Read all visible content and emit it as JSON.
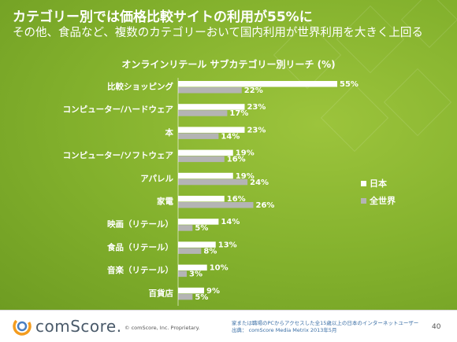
{
  "slide": {
    "headline": "カテゴリー別では価格比較サイトの利用が55%に",
    "subline": "その他、食品など、複数のカテゴリーおいて国内利用が世界利用を大きく上回る",
    "page_number": "40"
  },
  "chart_data": {
    "type": "bar",
    "orientation": "horizontal",
    "title": "オンラインリテール サブカテゴリー別リーチ (%)",
    "categories": [
      "比較ショッピング",
      "コンピューター/ハードウェア",
      "本",
      "コンピューター/ソフトウェア",
      "アパレル",
      "家電",
      "映画（リテール）",
      "食品（リテール）",
      "音楽（リテール）",
      "百貨店"
    ],
    "series": [
      {
        "name": "日本",
        "color": "#ffffff",
        "values": [
          55,
          23,
          23,
          19,
          19,
          16,
          14,
          13,
          10,
          9
        ]
      },
      {
        "name": "全世界",
        "color": "#b4b4b4",
        "values": [
          22,
          17,
          14,
          16,
          24,
          26,
          5,
          8,
          3,
          5
        ]
      }
    ],
    "value_suffix": "%",
    "xlim": [
      0,
      60
    ],
    "grid": false,
    "legend_position": "right"
  },
  "footer": {
    "logo_text": "comScore.",
    "copyright": "© comScore, Inc.   Proprietary.",
    "footnote_line1": "家または職場のPCからアクセスした全15歳以上の日本のインターネットユーザー",
    "footnote_line2": "出典： comScore Media Metrix 2013年5月"
  },
  "icons": {
    "logo": "comscore-logo-icon"
  }
}
